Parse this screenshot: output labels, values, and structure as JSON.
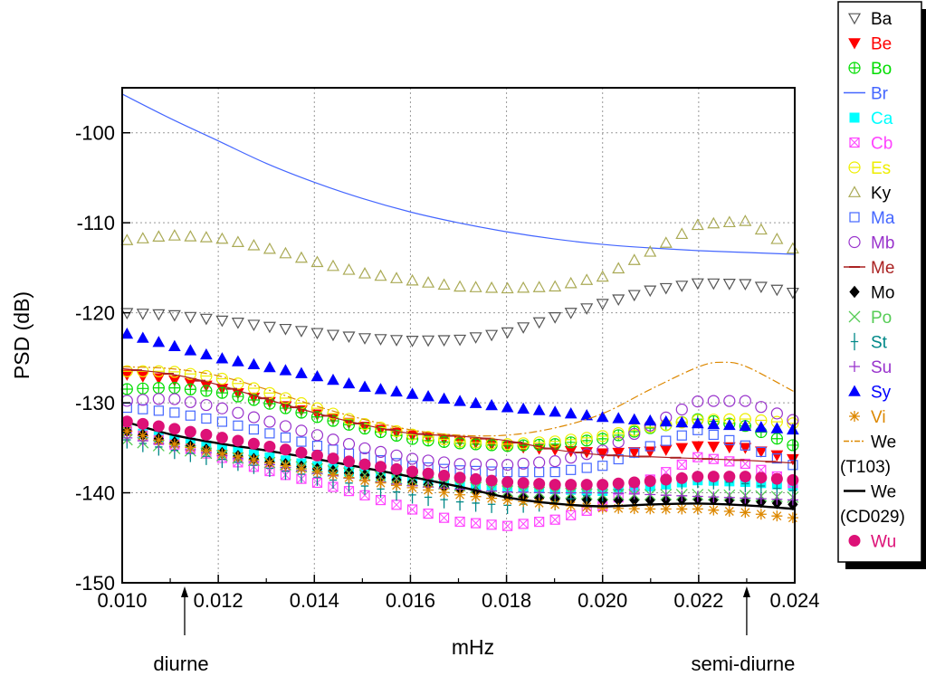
{
  "chart_data": {
    "type": "scatter",
    "xlabel": "mHz",
    "ylabel": "PSD (dB)",
    "xlim": [
      0.01,
      0.024
    ],
    "ylim": [
      -150,
      -95
    ],
    "x_ticks": [
      "0.010",
      "0.012",
      "0.014",
      "0.016",
      "0.018",
      "0.020",
      "0.022",
      "0.024"
    ],
    "y_ticks": [
      "-100",
      "-110",
      "-120",
      "-130",
      "-140",
      "-150"
    ],
    "grid": true,
    "legend_position": "right",
    "annotations": [
      {
        "text": "diurne",
        "x": 0.0113
      },
      {
        "text": "semi-diurne",
        "x": 0.023
      }
    ],
    "series": [
      {
        "name": "Ba",
        "color": "#555555",
        "marker": "triangle-down-open",
        "line": false,
        "x": [
          0.01,
          0.011,
          0.012,
          0.013,
          0.014,
          0.015,
          0.016,
          0.017,
          0.018,
          0.019,
          0.02,
          0.021,
          0.022,
          0.023,
          0.024
        ],
        "y": [
          -120.0,
          -120.2,
          -120.8,
          -121.5,
          -122.2,
          -122.8,
          -123.1,
          -123.0,
          -122.2,
          -120.5,
          -119.0,
          -117.5,
          -116.7,
          -116.8,
          -117.8
        ]
      },
      {
        "name": "Be",
        "color": "#ff0000",
        "marker": "triangle-down-filled",
        "line": false,
        "x": [
          0.01,
          0.011,
          0.012,
          0.013,
          0.014,
          0.015,
          0.016,
          0.017,
          0.018,
          0.019,
          0.02,
          0.021,
          0.022,
          0.023,
          0.024
        ],
        "y": [
          -126.8,
          -127.4,
          -128.3,
          -129.8,
          -131.2,
          -132.6,
          -133.6,
          -134.2,
          -134.8,
          -135.2,
          -135.6,
          -135.4,
          -134.8,
          -135.0,
          -136.3
        ]
      },
      {
        "name": "Bo",
        "color": "#00dd00",
        "marker": "circle-plus",
        "line": false,
        "x": [
          0.01,
          0.011,
          0.012,
          0.013,
          0.014,
          0.015,
          0.016,
          0.017,
          0.018,
          0.019,
          0.02,
          0.021,
          0.022,
          0.023,
          0.024
        ],
        "y": [
          -128.5,
          -128.3,
          -128.8,
          -130.0,
          -131.5,
          -132.8,
          -134.0,
          -134.5,
          -134.8,
          -134.6,
          -134.0,
          -132.8,
          -131.8,
          -132.6,
          -134.8
        ]
      },
      {
        "name": "Br",
        "color": "#4466ff",
        "marker": "none",
        "line": true,
        "x": [
          0.01,
          0.011,
          0.012,
          0.013,
          0.014,
          0.015,
          0.016,
          0.017,
          0.018,
          0.019,
          0.02,
          0.021,
          0.022,
          0.023,
          0.024
        ],
        "y": [
          -95.7,
          -98.4,
          -100.9,
          -103.4,
          -105.5,
          -107.3,
          -108.8,
          -110.0,
          -111.0,
          -111.8,
          -112.4,
          -112.8,
          -113.1,
          -113.3,
          -113.5
        ]
      },
      {
        "name": "Ca",
        "color": "#00ffff",
        "marker": "square-filled",
        "line": false,
        "x": [
          0.01,
          0.011,
          0.012,
          0.013,
          0.014,
          0.015,
          0.016,
          0.017,
          0.018,
          0.019,
          0.02,
          0.021,
          0.022,
          0.023,
          0.024
        ],
        "y": [
          -133.0,
          -134.0,
          -135.0,
          -136.0,
          -137.0,
          -137.8,
          -138.5,
          -139.0,
          -139.3,
          -139.6,
          -139.8,
          -139.3,
          -138.6,
          -138.8,
          -139.2
        ]
      },
      {
        "name": "Cb",
        "color": "#ff44ff",
        "marker": "square-cross",
        "line": false,
        "x": [
          0.01,
          0.011,
          0.012,
          0.013,
          0.014,
          0.015,
          0.016,
          0.017,
          0.018,
          0.019,
          0.02,
          0.021,
          0.022,
          0.023,
          0.024
        ],
        "y": [
          -133.0,
          -134.5,
          -136.0,
          -137.5,
          -138.8,
          -140.2,
          -141.8,
          -143.2,
          -143.7,
          -143.0,
          -141.5,
          -138.5,
          -136.0,
          -136.8,
          -139.0
        ]
      },
      {
        "name": "Es",
        "color": "#eeee00",
        "marker": "circle-minus",
        "line": false,
        "x": [
          0.01,
          0.011,
          0.012,
          0.013,
          0.014,
          0.015,
          0.016,
          0.017,
          0.018,
          0.019,
          0.02,
          0.021,
          0.022,
          0.023,
          0.024
        ],
        "y": [
          -126.5,
          -126.5,
          -127.2,
          -128.8,
          -130.5,
          -132.3,
          -133.5,
          -134.3,
          -134.6,
          -134.3,
          -133.7,
          -132.7,
          -131.9,
          -131.8,
          -132.3
        ]
      },
      {
        "name": "Ky",
        "color": "#aaaa55",
        "marker": "triangle-up-open",
        "line": false,
        "x": [
          0.01,
          0.011,
          0.012,
          0.013,
          0.014,
          0.015,
          0.016,
          0.017,
          0.018,
          0.019,
          0.02,
          0.021,
          0.022,
          0.023,
          0.024
        ],
        "y": [
          -112.0,
          -111.4,
          -111.7,
          -112.8,
          -114.3,
          -115.6,
          -116.4,
          -117.1,
          -117.3,
          -117.1,
          -116.0,
          -113.2,
          -110.2,
          -109.8,
          -113.0
        ]
      },
      {
        "name": "Ma",
        "color": "#4466ff",
        "marker": "square-open",
        "line": false,
        "x": [
          0.01,
          0.011,
          0.012,
          0.013,
          0.014,
          0.015,
          0.016,
          0.017,
          0.018,
          0.019,
          0.02,
          0.021,
          0.022,
          0.023,
          0.024
        ],
        "y": [
          -130.5,
          -131.0,
          -132.0,
          -133.3,
          -134.7,
          -136.0,
          -137.0,
          -137.5,
          -137.7,
          -137.7,
          -137.0,
          -134.8,
          -133.0,
          -134.8,
          -137.0
        ]
      },
      {
        "name": "Mb",
        "color": "#9933cc",
        "marker": "circle-open",
        "line": false,
        "x": [
          0.01,
          0.011,
          0.012,
          0.013,
          0.014,
          0.015,
          0.016,
          0.017,
          0.018,
          0.019,
          0.02,
          0.021,
          0.022,
          0.023,
          0.024
        ],
        "y": [
          -129.8,
          -129.5,
          -130.5,
          -132.0,
          -133.5,
          -135.0,
          -136.2,
          -136.8,
          -136.9,
          -136.5,
          -135.3,
          -132.5,
          -129.8,
          -129.8,
          -132.0
        ]
      },
      {
        "name": "Me",
        "color": "#aa2222",
        "marker": "dash",
        "line": true,
        "x": [
          0.01,
          0.011,
          0.012,
          0.013,
          0.014,
          0.015,
          0.016,
          0.017,
          0.018,
          0.019,
          0.02,
          0.021,
          0.022,
          0.023,
          0.024
        ],
        "y": [
          -126.2,
          -126.8,
          -128.0,
          -129.6,
          -131.1,
          -132.4,
          -133.4,
          -133.7,
          -134.2,
          -135.2,
          -135.8,
          -136.0,
          -136.2,
          -136.4,
          -136.7
        ]
      },
      {
        "name": "Mo",
        "color": "#000000",
        "marker": "diamond-filled",
        "line": false,
        "x": [
          0.01,
          0.011,
          0.012,
          0.013,
          0.014,
          0.015,
          0.016,
          0.017,
          0.018,
          0.019,
          0.02,
          0.021,
          0.022,
          0.023,
          0.024
        ],
        "y": [
          -133.0,
          -134.3,
          -135.5,
          -136.5,
          -137.3,
          -138.0,
          -138.8,
          -139.6,
          -140.4,
          -140.7,
          -140.8,
          -140.8,
          -140.7,
          -140.9,
          -141.3
        ]
      },
      {
        "name": "Po",
        "color": "#55cc55",
        "marker": "x",
        "line": false,
        "x": [
          0.01,
          0.011,
          0.012,
          0.013,
          0.014,
          0.015,
          0.016,
          0.017,
          0.018,
          0.019,
          0.02,
          0.021,
          0.022,
          0.023,
          0.024
        ],
        "y": [
          -134.0,
          -135.0,
          -135.8,
          -136.6,
          -137.3,
          -138.0,
          -138.6,
          -139.2,
          -139.8,
          -140.0,
          -140.2,
          -140.2,
          -140.2,
          -140.3,
          -140.5
        ]
      },
      {
        "name": "St",
        "color": "#008888",
        "marker": "error-bar",
        "line": false,
        "x": [
          0.01,
          0.011,
          0.012,
          0.013,
          0.014,
          0.015,
          0.016,
          0.017,
          0.018,
          0.019,
          0.02,
          0.021,
          0.022,
          0.023,
          0.024
        ],
        "y": [
          -134.0,
          -135.2,
          -136.2,
          -137.2,
          -138.2,
          -139.2,
          -140.2,
          -141.0,
          -141.4,
          -141.0,
          -140.0,
          -139.0,
          -138.5,
          -139.0,
          -139.8
        ]
      },
      {
        "name": "Su",
        "color": "#9933cc",
        "marker": "plus",
        "line": false,
        "x": [
          0.01,
          0.011,
          0.012,
          0.013,
          0.014,
          0.015,
          0.016,
          0.017,
          0.018,
          0.019,
          0.02,
          0.021,
          0.022,
          0.023,
          0.024
        ],
        "y": [
          -133.8,
          -134.8,
          -135.8,
          -136.8,
          -137.8,
          -138.6,
          -139.2,
          -139.6,
          -139.9,
          -140.0,
          -140.0,
          -140.2,
          -140.4,
          -140.6,
          -140.8
        ]
      },
      {
        "name": "Sy",
        "color": "#0000ff",
        "marker": "triangle-up-filled",
        "line": false,
        "x": [
          0.01,
          0.011,
          0.012,
          0.013,
          0.014,
          0.015,
          0.016,
          0.017,
          0.018,
          0.019,
          0.02,
          0.021,
          0.022,
          0.023,
          0.024
        ],
        "y": [
          -122.2,
          -123.6,
          -125.0,
          -126.0,
          -127.0,
          -128.2,
          -129.0,
          -129.8,
          -130.5,
          -131.0,
          -131.6,
          -132.0,
          -132.3,
          -132.6,
          -133.0
        ]
      },
      {
        "name": "Vi",
        "color": "#dd8800",
        "marker": "star",
        "line": false,
        "x": [
          0.01,
          0.011,
          0.012,
          0.013,
          0.014,
          0.015,
          0.016,
          0.017,
          0.018,
          0.019,
          0.02,
          0.021,
          0.022,
          0.023,
          0.024
        ],
        "y": [
          -133.0,
          -134.5,
          -135.6,
          -136.6,
          -137.6,
          -138.6,
          -139.4,
          -140.2,
          -140.8,
          -141.3,
          -141.7,
          -141.8,
          -141.8,
          -142.2,
          -142.8
        ]
      },
      {
        "name": "We (T103)",
        "color": "#dd8800",
        "marker": "none",
        "line": true,
        "dash": "dashdot",
        "x": [
          0.01,
          0.011,
          0.012,
          0.013,
          0.014,
          0.015,
          0.016,
          0.017,
          0.018,
          0.019,
          0.02,
          0.021,
          0.022,
          0.0225,
          0.023,
          0.024
        ],
        "y": [
          -126.0,
          -126.2,
          -127.0,
          -128.5,
          -130.3,
          -131.8,
          -133.0,
          -133.6,
          -133.6,
          -132.8,
          -131.2,
          -128.5,
          -126.0,
          -125.5,
          -126.0,
          -128.8
        ]
      },
      {
        "name": "We (CD029)",
        "color": "#000000",
        "marker": "none",
        "line": true,
        "x": [
          0.01,
          0.011,
          0.012,
          0.013,
          0.014,
          0.015,
          0.016,
          0.017,
          0.018,
          0.019,
          0.02,
          0.021,
          0.022,
          0.023,
          0.024
        ],
        "y": [
          -132.0,
          -133.5,
          -134.5,
          -135.3,
          -136.2,
          -137.2,
          -138.2,
          -139.3,
          -140.5,
          -141.2,
          -141.5,
          -141.3,
          -141.2,
          -141.4,
          -141.8
        ]
      },
      {
        "name": "Wu",
        "color": "#dd1177",
        "marker": "circle-filled",
        "line": false,
        "x": [
          0.01,
          0.011,
          0.012,
          0.013,
          0.014,
          0.015,
          0.016,
          0.017,
          0.018,
          0.019,
          0.02,
          0.021,
          0.022,
          0.023,
          0.024
        ],
        "y": [
          -132.0,
          -132.8,
          -133.8,
          -134.8,
          -135.8,
          -136.8,
          -137.6,
          -138.3,
          -138.8,
          -139.1,
          -139.1,
          -138.7,
          -138.2,
          -138.2,
          -138.6
        ]
      }
    ]
  }
}
